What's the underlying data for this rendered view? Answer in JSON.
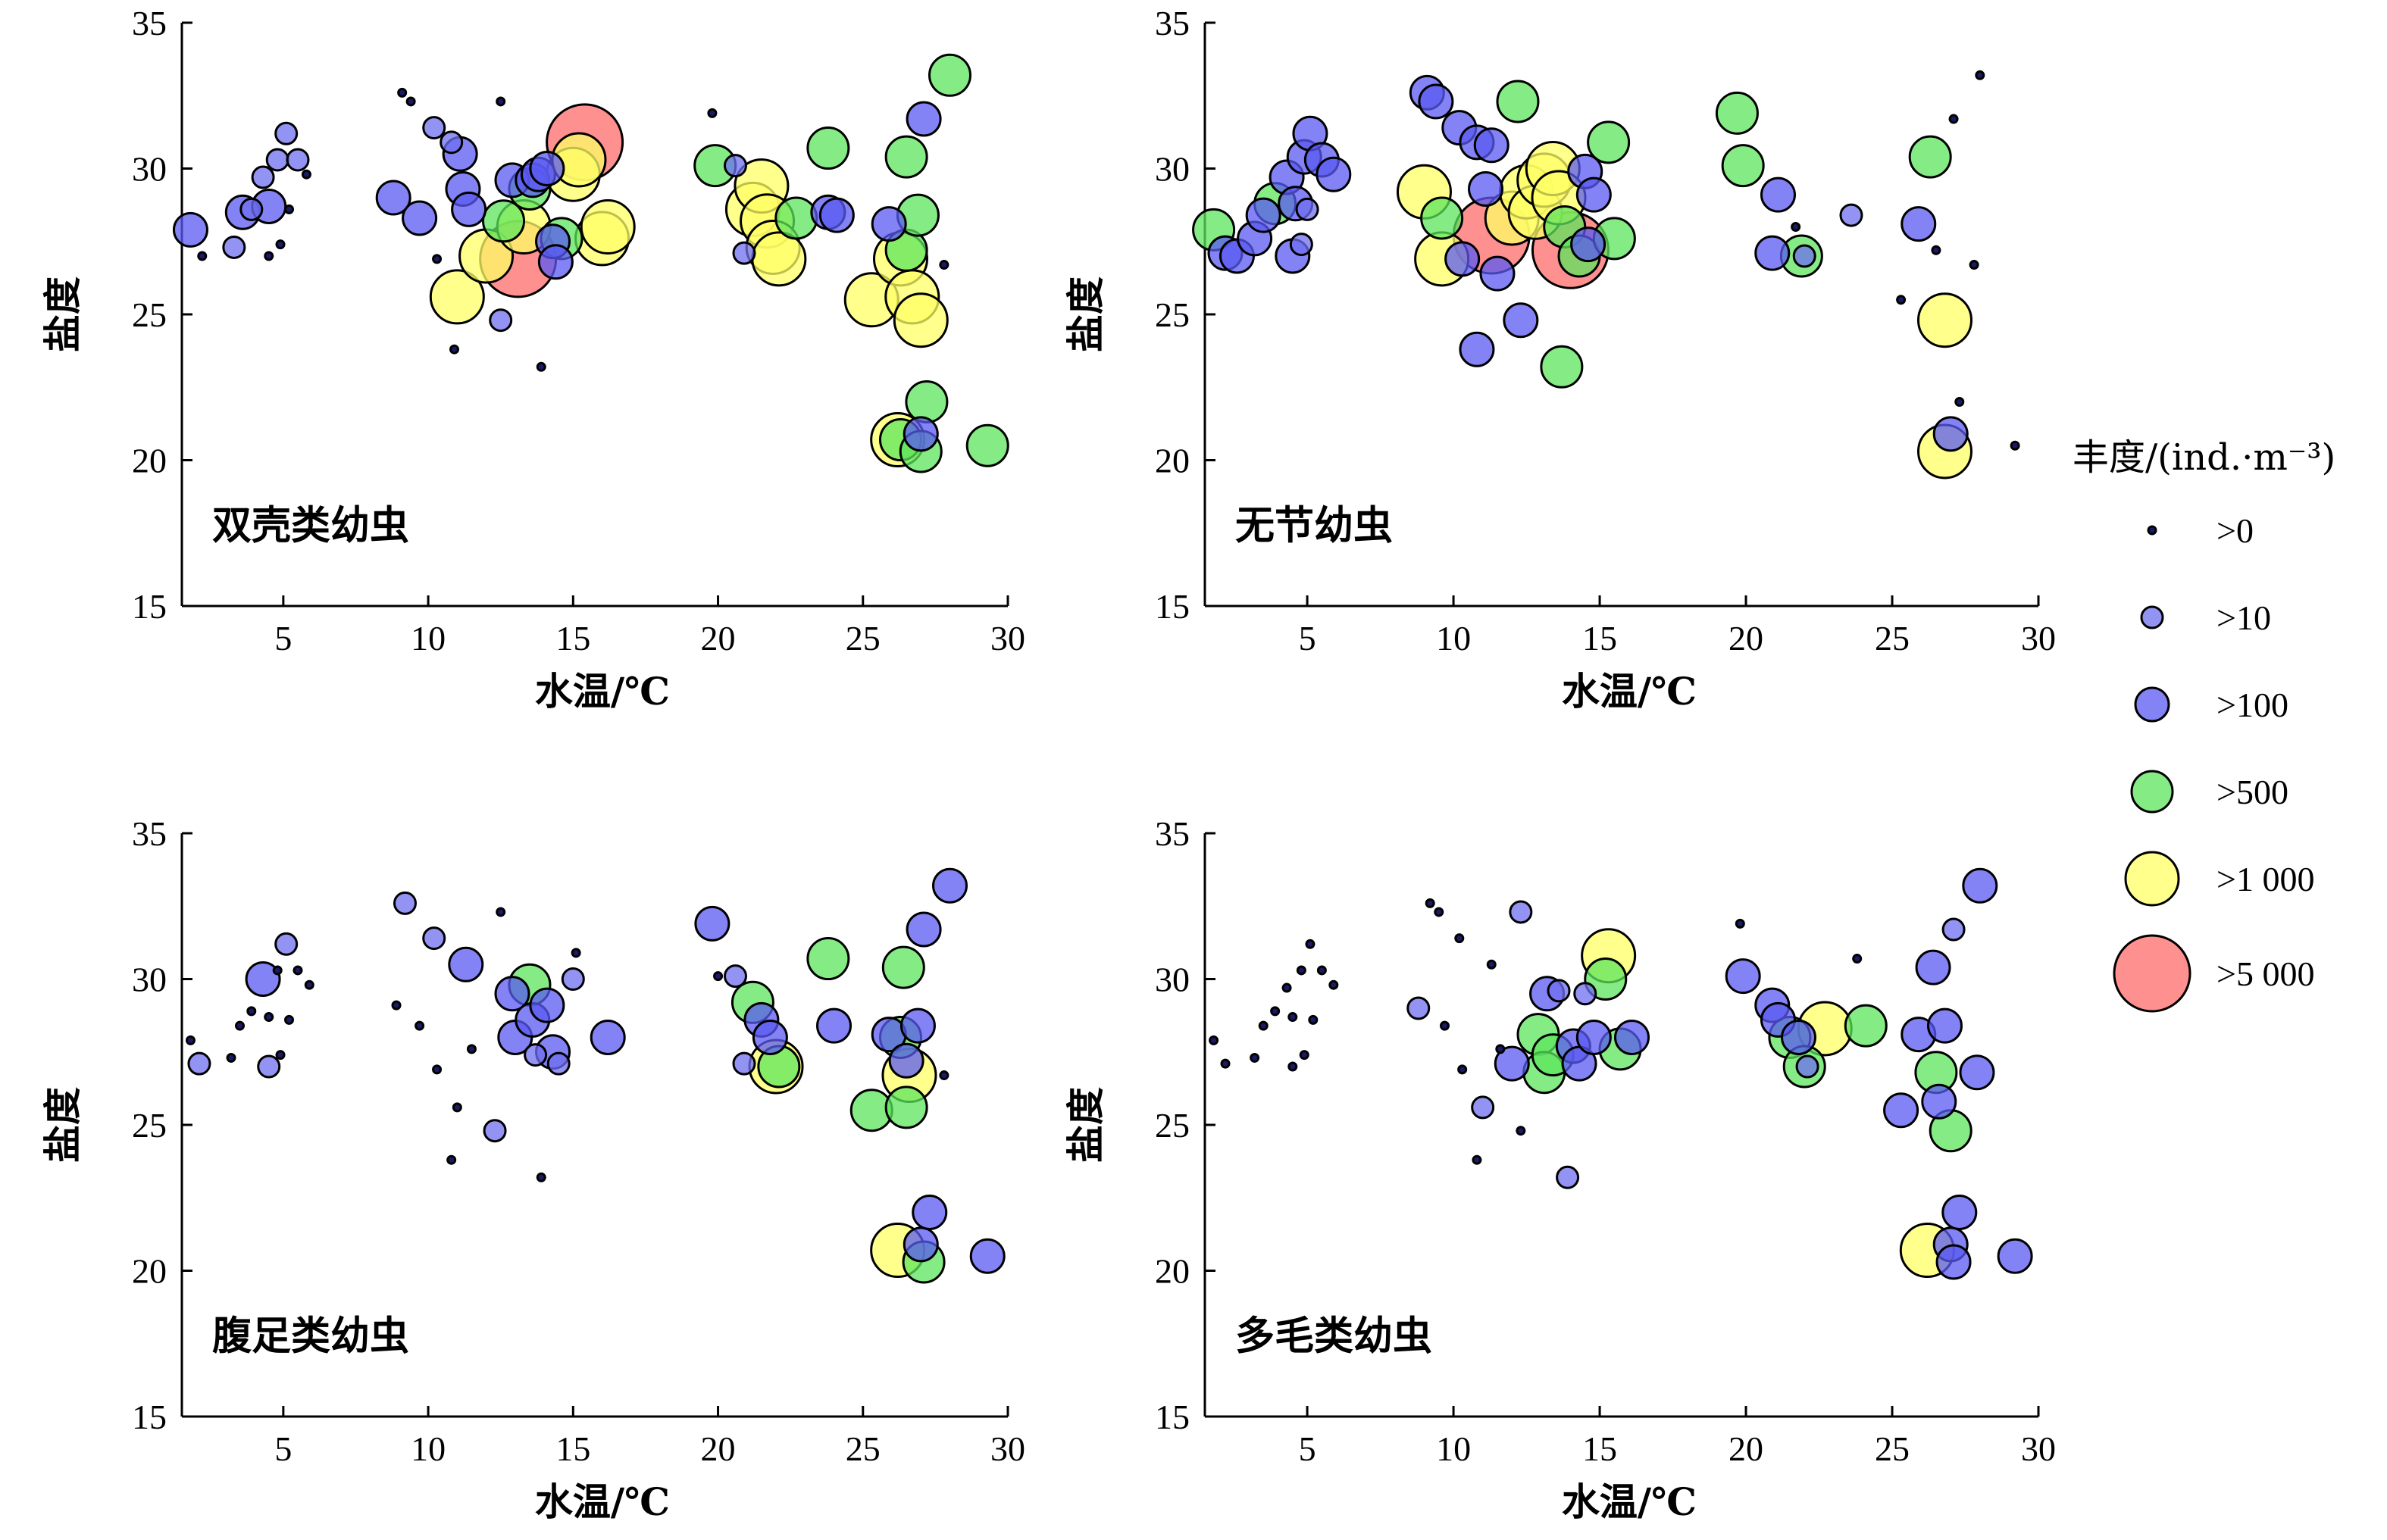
{
  "legend": {
    "title": "丰度/(ind.·m⁻³)",
    "classes": [
      {
        "label": ">0",
        "color": "#1a1a66",
        "size": 0
      },
      {
        "label": ">10",
        "color": "#6f6ff0",
        "size": 1
      },
      {
        "label": ">100",
        "color": "#5a5af2",
        "size": 2
      },
      {
        "label": ">500",
        "color": "#5ce65c",
        "size": 3
      },
      {
        "label": ">1 000",
        "color": "#ffff66",
        "size": 4
      },
      {
        "label": ">5 000",
        "color": "#ff6b6b",
        "size": 5
      }
    ]
  },
  "chart_data": [
    {
      "type": "scatter",
      "title": "双壳类幼虫",
      "xlabel": "水温/℃",
      "ylabel": "盐度",
      "xlim": [
        1.5,
        30
      ],
      "ylim": [
        15,
        35
      ],
      "xticks": [
        5,
        10,
        15,
        20,
        25,
        30
      ],
      "yticks": [
        15,
        20,
        25,
        30,
        35
      ],
      "points": [
        [
          1.8,
          27.9,
          2
        ],
        [
          2.2,
          27.0,
          0
        ],
        [
          3.3,
          27.3,
          1
        ],
        [
          3.6,
          28.5,
          2
        ],
        [
          3.9,
          28.6,
          1
        ],
        [
          4.3,
          29.7,
          1
        ],
        [
          4.5,
          28.7,
          2
        ],
        [
          4.8,
          30.3,
          1
        ],
        [
          5.1,
          31.2,
          1
        ],
        [
          5.5,
          30.3,
          1
        ],
        [
          5.8,
          29.8,
          0
        ],
        [
          4.5,
          27.0,
          0
        ],
        [
          4.9,
          27.4,
          0
        ],
        [
          5.2,
          28.6,
          0
        ],
        [
          9.1,
          32.6,
          0
        ],
        [
          9.4,
          32.3,
          0
        ],
        [
          8.8,
          29.0,
          2
        ],
        [
          9.7,
          28.3,
          2
        ],
        [
          10.2,
          31.4,
          1
        ],
        [
          10.3,
          26.9,
          0
        ],
        [
          10.8,
          30.9,
          1
        ],
        [
          10.9,
          23.8,
          0
        ],
        [
          11.1,
          30.5,
          2
        ],
        [
          11.2,
          29.3,
          2
        ],
        [
          11.4,
          28.6,
          2
        ],
        [
          11.0,
          25.6,
          4
        ],
        [
          12.0,
          27.0,
          4
        ],
        [
          12.6,
          28.2,
          3
        ],
        [
          12.5,
          24.8,
          1
        ],
        [
          12.5,
          32.3,
          0
        ],
        [
          12.9,
          29.6,
          2
        ],
        [
          13.1,
          26.9,
          5
        ],
        [
          13.3,
          28.0,
          4
        ],
        [
          13.5,
          29.3,
          3
        ],
        [
          13.6,
          29.6,
          2
        ],
        [
          13.8,
          29.8,
          2
        ],
        [
          13.9,
          23.2,
          0
        ],
        [
          14.1,
          30.0,
          2
        ],
        [
          14.3,
          27.5,
          2
        ],
        [
          14.4,
          26.8,
          2
        ],
        [
          14.6,
          27.6,
          3
        ],
        [
          15.0,
          29.8,
          4
        ],
        [
          15.2,
          30.3,
          4
        ],
        [
          15.4,
          30.9,
          5
        ],
        [
          16.0,
          27.6,
          4
        ],
        [
          16.2,
          28.0,
          4
        ],
        [
          19.8,
          31.9,
          0
        ],
        [
          19.9,
          30.1,
          3
        ],
        [
          20.6,
          30.1,
          1
        ],
        [
          20.9,
          27.1,
          1
        ],
        [
          21.2,
          28.6,
          4
        ],
        [
          21.5,
          29.4,
          4
        ],
        [
          21.7,
          28.2,
          4
        ],
        [
          21.9,
          27.3,
          4
        ],
        [
          22.1,
          26.9,
          4
        ],
        [
          22.7,
          28.3,
          3
        ],
        [
          23.8,
          30.7,
          3
        ],
        [
          23.8,
          28.5,
          2
        ],
        [
          24.1,
          28.4,
          2
        ],
        [
          25.3,
          25.5,
          4
        ],
        [
          25.9,
          28.1,
          2
        ],
        [
          26.2,
          20.7,
          4
        ],
        [
          26.3,
          20.7,
          3
        ],
        [
          26.3,
          26.9,
          4
        ],
        [
          26.5,
          30.4,
          3
        ],
        [
          26.5,
          27.2,
          3
        ],
        [
          26.7,
          25.6,
          4
        ],
        [
          26.9,
          28.4,
          3
        ],
        [
          27.0,
          24.8,
          4
        ],
        [
          27.0,
          20.9,
          2
        ],
        [
          27.1,
          31.7,
          2
        ],
        [
          27.2,
          22.0,
          3
        ],
        [
          27.0,
          20.3,
          3
        ],
        [
          28.0,
          33.2,
          3
        ],
        [
          27.8,
          26.7,
          0
        ],
        [
          29.3,
          20.5,
          3
        ]
      ]
    },
    {
      "type": "scatter",
      "title": "无节幼虫",
      "xlabel": "水温/℃",
      "ylabel": "盐度",
      "xlim": [
        1.5,
        30
      ],
      "ylim": [
        15,
        35
      ],
      "xticks": [
        5,
        10,
        15,
        20,
        25,
        30
      ],
      "yticks": [
        15,
        20,
        25,
        30,
        35
      ],
      "points": [
        [
          1.8,
          27.9,
          3
        ],
        [
          2.2,
          27.1,
          2
        ],
        [
          2.6,
          27.0,
          2
        ],
        [
          3.2,
          27.6,
          2
        ],
        [
          3.5,
          28.4,
          2
        ],
        [
          3.9,
          28.8,
          3
        ],
        [
          4.3,
          29.7,
          2
        ],
        [
          4.6,
          28.8,
          2
        ],
        [
          4.9,
          30.4,
          2
        ],
        [
          5.1,
          31.2,
          2
        ],
        [
          5.5,
          30.3,
          2
        ],
        [
          5.9,
          29.8,
          2
        ],
        [
          4.5,
          27.0,
          2
        ],
        [
          4.8,
          27.4,
          1
        ],
        [
          5.0,
          28.6,
          1
        ],
        [
          9.1,
          32.6,
          2
        ],
        [
          9.4,
          32.3,
          2
        ],
        [
          9.0,
          29.2,
          4
        ],
        [
          9.6,
          28.3,
          3
        ],
        [
          9.6,
          26.9,
          4
        ],
        [
          10.2,
          31.4,
          2
        ],
        [
          10.3,
          26.9,
          2
        ],
        [
          10.8,
          30.9,
          2
        ],
        [
          10.8,
          23.8,
          2
        ],
        [
          11.1,
          29.3,
          2
        ],
        [
          11.3,
          30.8,
          2
        ],
        [
          11.3,
          27.7,
          5
        ],
        [
          11.5,
          26.4,
          2
        ],
        [
          12.0,
          28.3,
          4
        ],
        [
          12.2,
          32.3,
          3
        ],
        [
          12.3,
          24.8,
          2
        ],
        [
          12.5,
          29.2,
          4
        ],
        [
          12.8,
          28.5,
          4
        ],
        [
          13.1,
          29.6,
          4
        ],
        [
          13.4,
          30.0,
          4
        ],
        [
          13.6,
          29.0,
          4
        ],
        [
          13.7,
          23.2,
          3
        ],
        [
          13.8,
          28.0,
          3
        ],
        [
          14.0,
          27.2,
          5
        ],
        [
          14.3,
          27.0,
          3
        ],
        [
          14.5,
          29.9,
          2
        ],
        [
          14.6,
          27.4,
          2
        ],
        [
          14.8,
          29.1,
          2
        ],
        [
          15.3,
          30.9,
          3
        ],
        [
          15.5,
          27.6,
          3
        ],
        [
          19.7,
          31.9,
          3
        ],
        [
          19.9,
          30.1,
          3
        ],
        [
          20.9,
          27.1,
          2
        ],
        [
          21.1,
          29.1,
          2
        ],
        [
          21.7,
          28.0,
          0
        ],
        [
          21.9,
          27.0,
          3
        ],
        [
          22.0,
          27.0,
          1
        ],
        [
          23.6,
          28.4,
          1
        ],
        [
          25.9,
          28.1,
          2
        ],
        [
          26.3,
          30.4,
          3
        ],
        [
          26.8,
          24.8,
          4
        ],
        [
          26.8,
          20.3,
          4
        ],
        [
          27.0,
          20.9,
          2
        ],
        [
          27.3,
          22.0,
          0
        ],
        [
          27.1,
          31.7,
          0
        ],
        [
          28.0,
          33.2,
          0
        ],
        [
          29.2,
          20.5,
          0
        ],
        [
          25.3,
          25.5,
          0
        ],
        [
          26.5,
          27.2,
          0
        ],
        [
          27.8,
          26.7,
          0
        ]
      ]
    },
    {
      "type": "scatter",
      "title": "腹足类幼虫",
      "xlabel": "水温/℃",
      "ylabel": "盐度",
      "xlim": [
        1.5,
        30
      ],
      "ylim": [
        15,
        35
      ],
      "xticks": [
        5,
        10,
        15,
        20,
        25,
        30
      ],
      "yticks": [
        15,
        20,
        25,
        30,
        35
      ],
      "points": [
        [
          1.8,
          27.9,
          0
        ],
        [
          2.1,
          27.1,
          1
        ],
        [
          3.2,
          27.3,
          0
        ],
        [
          3.5,
          28.4,
          0
        ],
        [
          3.9,
          28.9,
          0
        ],
        [
          4.3,
          30.0,
          2
        ],
        [
          4.5,
          28.7,
          0
        ],
        [
          4.8,
          30.3,
          0
        ],
        [
          5.1,
          31.2,
          1
        ],
        [
          5.5,
          30.3,
          0
        ],
        [
          5.9,
          29.8,
          0
        ],
        [
          4.5,
          27.0,
          1
        ],
        [
          4.9,
          27.4,
          0
        ],
        [
          5.2,
          28.6,
          0
        ],
        [
          9.2,
          32.6,
          1
        ],
        [
          8.9,
          29.1,
          0
        ],
        [
          9.7,
          28.4,
          0
        ],
        [
          10.2,
          31.4,
          1
        ],
        [
          10.3,
          26.9,
          0
        ],
        [
          10.8,
          23.8,
          0
        ],
        [
          11.3,
          30.5,
          2
        ],
        [
          11.0,
          25.6,
          0
        ],
        [
          11.5,
          27.6,
          0
        ],
        [
          12.3,
          24.8,
          1
        ],
        [
          12.5,
          32.3,
          0
        ],
        [
          12.9,
          29.5,
          2
        ],
        [
          13.0,
          28.0,
          2
        ],
        [
          13.5,
          29.8,
          3
        ],
        [
          13.6,
          28.6,
          2
        ],
        [
          13.7,
          27.4,
          1
        ],
        [
          13.9,
          23.2,
          0
        ],
        [
          14.1,
          29.1,
          2
        ],
        [
          14.3,
          27.5,
          2
        ],
        [
          14.5,
          27.1,
          1
        ],
        [
          15.0,
          30.0,
          1
        ],
        [
          15.1,
          30.9,
          0
        ],
        [
          16.2,
          28.0,
          2
        ],
        [
          19.8,
          31.9,
          2
        ],
        [
          20.0,
          30.1,
          0
        ],
        [
          20.6,
          30.1,
          1
        ],
        [
          20.9,
          27.1,
          1
        ],
        [
          21.2,
          29.2,
          3
        ],
        [
          21.5,
          28.6,
          2
        ],
        [
          21.8,
          28.0,
          2
        ],
        [
          22.0,
          27.0,
          4
        ],
        [
          22.1,
          27.0,
          3
        ],
        [
          23.8,
          30.7,
          3
        ],
        [
          24.0,
          28.4,
          2
        ],
        [
          25.3,
          25.5,
          3
        ],
        [
          25.9,
          28.1,
          2
        ],
        [
          26.2,
          20.7,
          4
        ],
        [
          26.3,
          28.0,
          3
        ],
        [
          26.4,
          30.4,
          3
        ],
        [
          26.5,
          27.2,
          2
        ],
        [
          26.5,
          25.6,
          3
        ],
        [
          26.6,
          26.7,
          4
        ],
        [
          26.9,
          28.4,
          2
        ],
        [
          27.0,
          20.9,
          2
        ],
        [
          27.1,
          20.3,
          3
        ],
        [
          27.1,
          31.7,
          2
        ],
        [
          27.3,
          22.0,
          2
        ],
        [
          28.0,
          33.2,
          2
        ],
        [
          29.3,
          20.5,
          2
        ],
        [
          27.8,
          26.7,
          0
        ]
      ]
    },
    {
      "type": "scatter",
      "title": "多毛类幼虫",
      "xlabel": "水温/℃",
      "ylabel": "盐度",
      "xlim": [
        1.5,
        30
      ],
      "ylim": [
        15,
        35
      ],
      "xticks": [
        5,
        10,
        15,
        20,
        25,
        30
      ],
      "yticks": [
        15,
        20,
        25,
        30,
        35
      ],
      "points": [
        [
          1.8,
          27.9,
          0
        ],
        [
          2.2,
          27.1,
          0
        ],
        [
          3.2,
          27.3,
          0
        ],
        [
          3.5,
          28.4,
          0
        ],
        [
          3.9,
          28.9,
          0
        ],
        [
          4.3,
          29.7,
          0
        ],
        [
          4.5,
          28.7,
          0
        ],
        [
          4.8,
          30.3,
          0
        ],
        [
          5.1,
          31.2,
          0
        ],
        [
          5.5,
          30.3,
          0
        ],
        [
          5.9,
          29.8,
          0
        ],
        [
          4.5,
          27.0,
          0
        ],
        [
          4.9,
          27.4,
          0
        ],
        [
          5.2,
          28.6,
          0
        ],
        [
          9.2,
          32.6,
          0
        ],
        [
          9.5,
          32.3,
          0
        ],
        [
          8.8,
          29.0,
          1
        ],
        [
          9.7,
          28.4,
          0
        ],
        [
          10.2,
          31.4,
          0
        ],
        [
          10.3,
          26.9,
          0
        ],
        [
          10.8,
          23.8,
          0
        ],
        [
          11.0,
          25.6,
          1
        ],
        [
          11.3,
          30.5,
          0
        ],
        [
          11.6,
          27.6,
          0
        ],
        [
          12.0,
          27.1,
          2
        ],
        [
          12.3,
          24.8,
          0
        ],
        [
          12.3,
          32.3,
          1
        ],
        [
          12.9,
          28.1,
          3
        ],
        [
          13.1,
          26.8,
          3
        ],
        [
          13.2,
          29.5,
          2
        ],
        [
          13.4,
          27.4,
          3
        ],
        [
          13.6,
          29.6,
          1
        ],
        [
          13.9,
          23.2,
          1
        ],
        [
          14.1,
          27.7,
          2
        ],
        [
          14.3,
          27.1,
          2
        ],
        [
          14.5,
          29.5,
          1
        ],
        [
          14.8,
          28.0,
          2
        ],
        [
          15.2,
          30.0,
          3
        ],
        [
          15.3,
          30.8,
          4
        ],
        [
          15.7,
          27.6,
          3
        ],
        [
          16.1,
          28.0,
          2
        ],
        [
          19.8,
          31.9,
          0
        ],
        [
          19.9,
          30.1,
          2
        ],
        [
          20.9,
          29.1,
          2
        ],
        [
          21.1,
          28.6,
          2
        ],
        [
          21.5,
          28.0,
          3
        ],
        [
          21.8,
          28.0,
          2
        ],
        [
          22.0,
          27.0,
          3
        ],
        [
          22.1,
          27.0,
          1
        ],
        [
          22.7,
          28.3,
          4
        ],
        [
          23.8,
          30.7,
          0
        ],
        [
          24.1,
          28.4,
          3
        ],
        [
          25.3,
          25.5,
          2
        ],
        [
          25.9,
          28.1,
          2
        ],
        [
          26.2,
          20.7,
          4
        ],
        [
          26.4,
          30.4,
          2
        ],
        [
          26.5,
          26.8,
          3
        ],
        [
          26.6,
          25.8,
          2
        ],
        [
          26.8,
          28.4,
          2
        ],
        [
          27.0,
          24.8,
          3
        ],
        [
          27.0,
          20.9,
          2
        ],
        [
          27.1,
          20.3,
          2
        ],
        [
          27.1,
          31.7,
          1
        ],
        [
          27.3,
          22.0,
          2
        ],
        [
          28.0,
          33.2,
          2
        ],
        [
          27.9,
          26.8,
          2
        ],
        [
          29.2,
          20.5,
          2
        ]
      ]
    }
  ]
}
